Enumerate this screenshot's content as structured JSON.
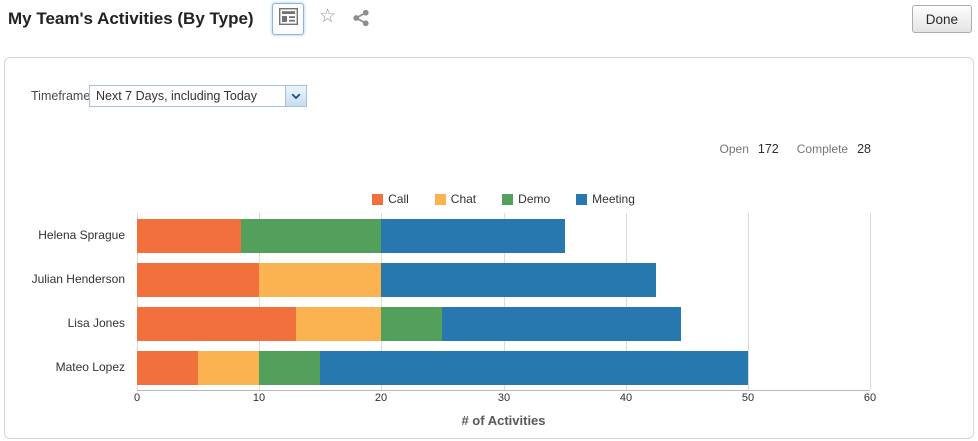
{
  "header": {
    "title": "My Team's Activities (By Type)",
    "done_label": "Done",
    "icons": [
      "card-view-icon",
      "favorite-star-icon",
      "share-icon"
    ]
  },
  "panel": {
    "timeframe_label": "Timeframe",
    "timeframe_value": "Next 7 Days, including Today",
    "summary": {
      "open_label": "Open",
      "open_value": "172",
      "complete_label": "Complete",
      "complete_value": "28"
    }
  },
  "colors": {
    "call": "#F1703B",
    "chat": "#FBB351",
    "demo": "#53A05C",
    "meeting": "#2878B0",
    "gridline": "#DCDCDC",
    "axis_line": "#B8B8B8",
    "select_border": "#A9C2DC",
    "panel_border": "#D7D7D7"
  },
  "chart_data": {
    "type": "bar",
    "orientation": "horizontal",
    "stacked": true,
    "title": "My Team's Activities (By Type)",
    "xlabel": "# of Activities",
    "ylabel": "",
    "xlim": [
      0,
      60
    ],
    "xticks": [
      0,
      10,
      20,
      30,
      40,
      50,
      60
    ],
    "grid": true,
    "legend_position": "top",
    "categories": [
      "Helena Sprague",
      "Julian Henderson",
      "Lisa Jones",
      "Mateo Lopez"
    ],
    "series": [
      {
        "name": "Call",
        "color": "#F1703B",
        "values": [
          8.5,
          10,
          13,
          5
        ]
      },
      {
        "name": "Chat",
        "color": "#FBB351",
        "values": [
          0,
          10,
          7,
          5
        ]
      },
      {
        "name": "Demo",
        "color": "#53A05C",
        "values": [
          11.5,
          0,
          5,
          5
        ]
      },
      {
        "name": "Meeting",
        "color": "#2878B0",
        "values": [
          15,
          22.5,
          19.5,
          35
        ]
      }
    ],
    "category_totals": [
      35,
      42.5,
      44.5,
      50
    ]
  }
}
